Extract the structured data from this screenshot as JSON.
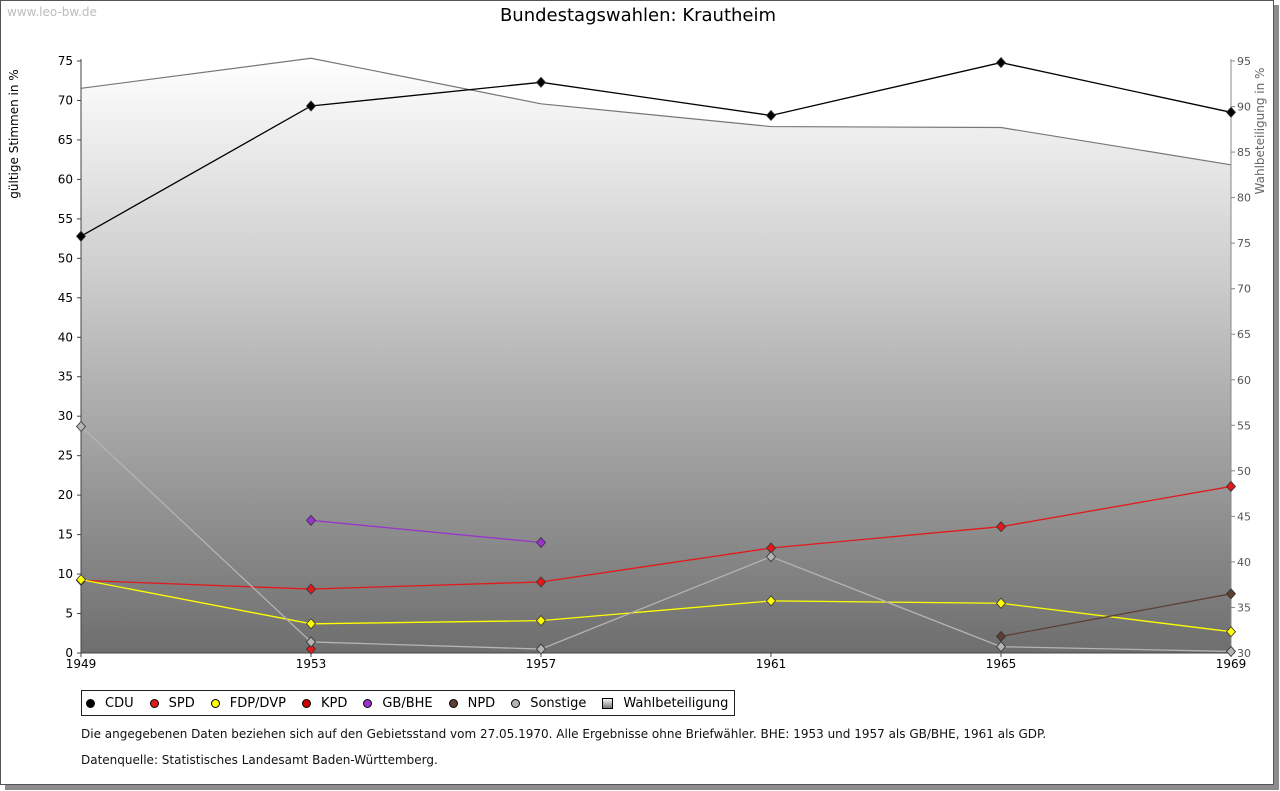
{
  "watermark": "www.leo-bw.de",
  "chart_data": {
    "type": "line",
    "title": "Bundestagswahlen: Krautheim",
    "ylabel": "gültige Stimmen in %",
    "y2label": "Wahlbeteiligung in %",
    "x": [
      1949,
      1953,
      1957,
      1961,
      1965,
      1969
    ],
    "ylim": [
      0,
      75
    ],
    "y2lim": [
      30,
      95
    ],
    "yticks": [
      0,
      5,
      10,
      15,
      20,
      25,
      30,
      35,
      40,
      45,
      50,
      55,
      60,
      65,
      70,
      75
    ],
    "y2ticks": [
      30,
      35,
      40,
      45,
      50,
      55,
      60,
      65,
      70,
      75,
      80,
      85,
      90,
      95
    ],
    "series": [
      {
        "name": "CDU",
        "color": "#000000",
        "values": [
          52.8,
          69.3,
          72.3,
          68.1,
          74.8,
          68.5
        ]
      },
      {
        "name": "SPD",
        "color": "#e31a1c",
        "values": [
          9.2,
          8.1,
          9.0,
          13.3,
          16.0,
          21.1
        ]
      },
      {
        "name": "FDP/DVP",
        "color": "#ffff00",
        "values": [
          9.3,
          3.7,
          4.1,
          6.6,
          6.3,
          2.7
        ]
      },
      {
        "name": "KPD",
        "color": "#e31a1c",
        "values": [
          null,
          0.5,
          null,
          null,
          null,
          null
        ]
      },
      {
        "name": "GB/BHE",
        "color": "#9933cc",
        "values": [
          null,
          16.8,
          14.0,
          null,
          null,
          null
        ]
      },
      {
        "name": "NPD",
        "color": "#5c4033",
        "values": [
          null,
          null,
          null,
          null,
          2.1,
          7.5
        ]
      },
      {
        "name": "Sonstige",
        "color": "#b4b4b4",
        "values": [
          28.7,
          1.4,
          0.5,
          12.2,
          0.8,
          0.2
        ]
      }
    ],
    "turnout": {
      "name": "Wahlbeteiligung",
      "values": [
        92.0,
        95.3,
        90.3,
        87.8,
        87.7,
        83.6
      ]
    }
  },
  "note": "Die angegebenen Daten beziehen sich auf den Gebietsstand vom 27.05.1970. Alle Ergebnisse ohne Briefwähler. BHE: 1953 und 1957 als GB/BHE, 1961 als GDP.",
  "source": "Datenquelle: Statistisches Landesamt Baden-Württemberg."
}
